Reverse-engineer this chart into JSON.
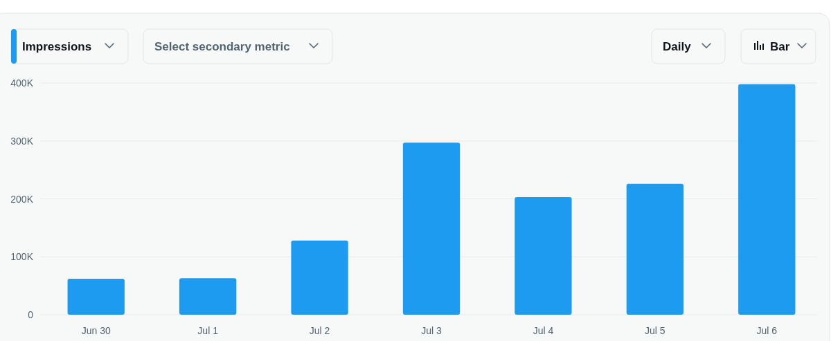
{
  "chart_data": {
    "type": "bar",
    "categories": [
      "Jun 30",
      "Jul 1",
      "Jul 2",
      "Jul 3",
      "Jul 4",
      "Jul 5",
      "Jul 6"
    ],
    "values": [
      62000,
      63000,
      128000,
      297000,
      203000,
      226000,
      398000
    ],
    "color": "#1d9bf0",
    "ylim": [
      0,
      400000
    ],
    "yticks": [
      {
        "value": 0,
        "label": "0"
      },
      {
        "value": 100000,
        "label": "100K"
      },
      {
        "value": 200000,
        "label": "200K"
      },
      {
        "value": 300000,
        "label": "300K"
      },
      {
        "value": 400000,
        "label": "400K"
      }
    ],
    "grid": "y",
    "annotations": [
      "Impressions",
      "Select secondary metric",
      "Daily",
      "Bar"
    ]
  }
}
